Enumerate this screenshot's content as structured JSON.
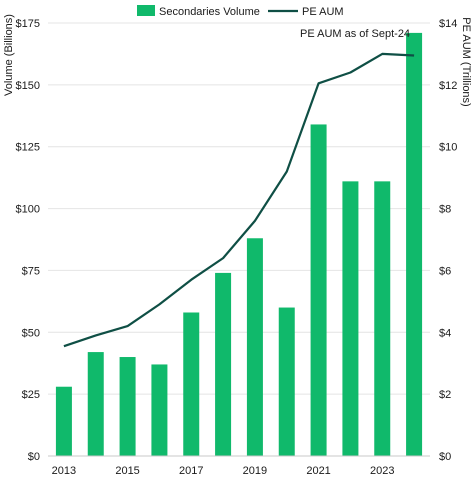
{
  "chart_data": {
    "type": "bar+line",
    "legend": {
      "position": "top-center",
      "items": [
        {
          "label": "Secondaries Volume",
          "symbol": "bar"
        },
        {
          "label": "PE AUM",
          "symbol": "line"
        }
      ]
    },
    "annotation": "PE AUM as of Sept-24",
    "y_left": {
      "label": "Volume (Billions)",
      "min": 0,
      "max": 175,
      "ticks": [
        0,
        25,
        50,
        75,
        100,
        125,
        150,
        175
      ],
      "tick_labels": [
        "$0",
        "$25",
        "$50",
        "$75",
        "$100",
        "$125",
        "$150",
        "$175"
      ]
    },
    "y_right": {
      "label": "PE AUM (Trillions)",
      "min": 0,
      "max": 14,
      "ticks": [
        0,
        2,
        4,
        6,
        8,
        10,
        12,
        14
      ],
      "tick_labels": [
        "$0",
        "$2",
        "$4",
        "$6",
        "$8",
        "$10",
        "$12",
        "$14"
      ]
    },
    "x": {
      "categories": [
        "2013",
        "2014",
        "2015",
        "2016",
        "2017",
        "2018",
        "2019",
        "2020",
        "2021",
        "2022",
        "2023",
        "2024"
      ],
      "tick_labels": [
        "2013",
        "2015",
        "2017",
        "2019",
        "2021",
        "2023"
      ]
    },
    "series": [
      {
        "name": "Secondaries Volume",
        "type": "bar",
        "axis": "left",
        "values": [
          28,
          42,
          40,
          37,
          58,
          74,
          88,
          60,
          134,
          111,
          111,
          171
        ]
      },
      {
        "name": "PE AUM",
        "type": "line",
        "axis": "right",
        "values": [
          3.55,
          3.9,
          4.2,
          4.9,
          5.7,
          6.4,
          7.6,
          9.2,
          12.05,
          12.4,
          13.0,
          12.95
        ]
      }
    ],
    "grid": true,
    "colors": {
      "bar": "#10b96b",
      "line": "#0f4f45",
      "grid": "#e4e4e4",
      "text": "#1a1a1a"
    }
  }
}
